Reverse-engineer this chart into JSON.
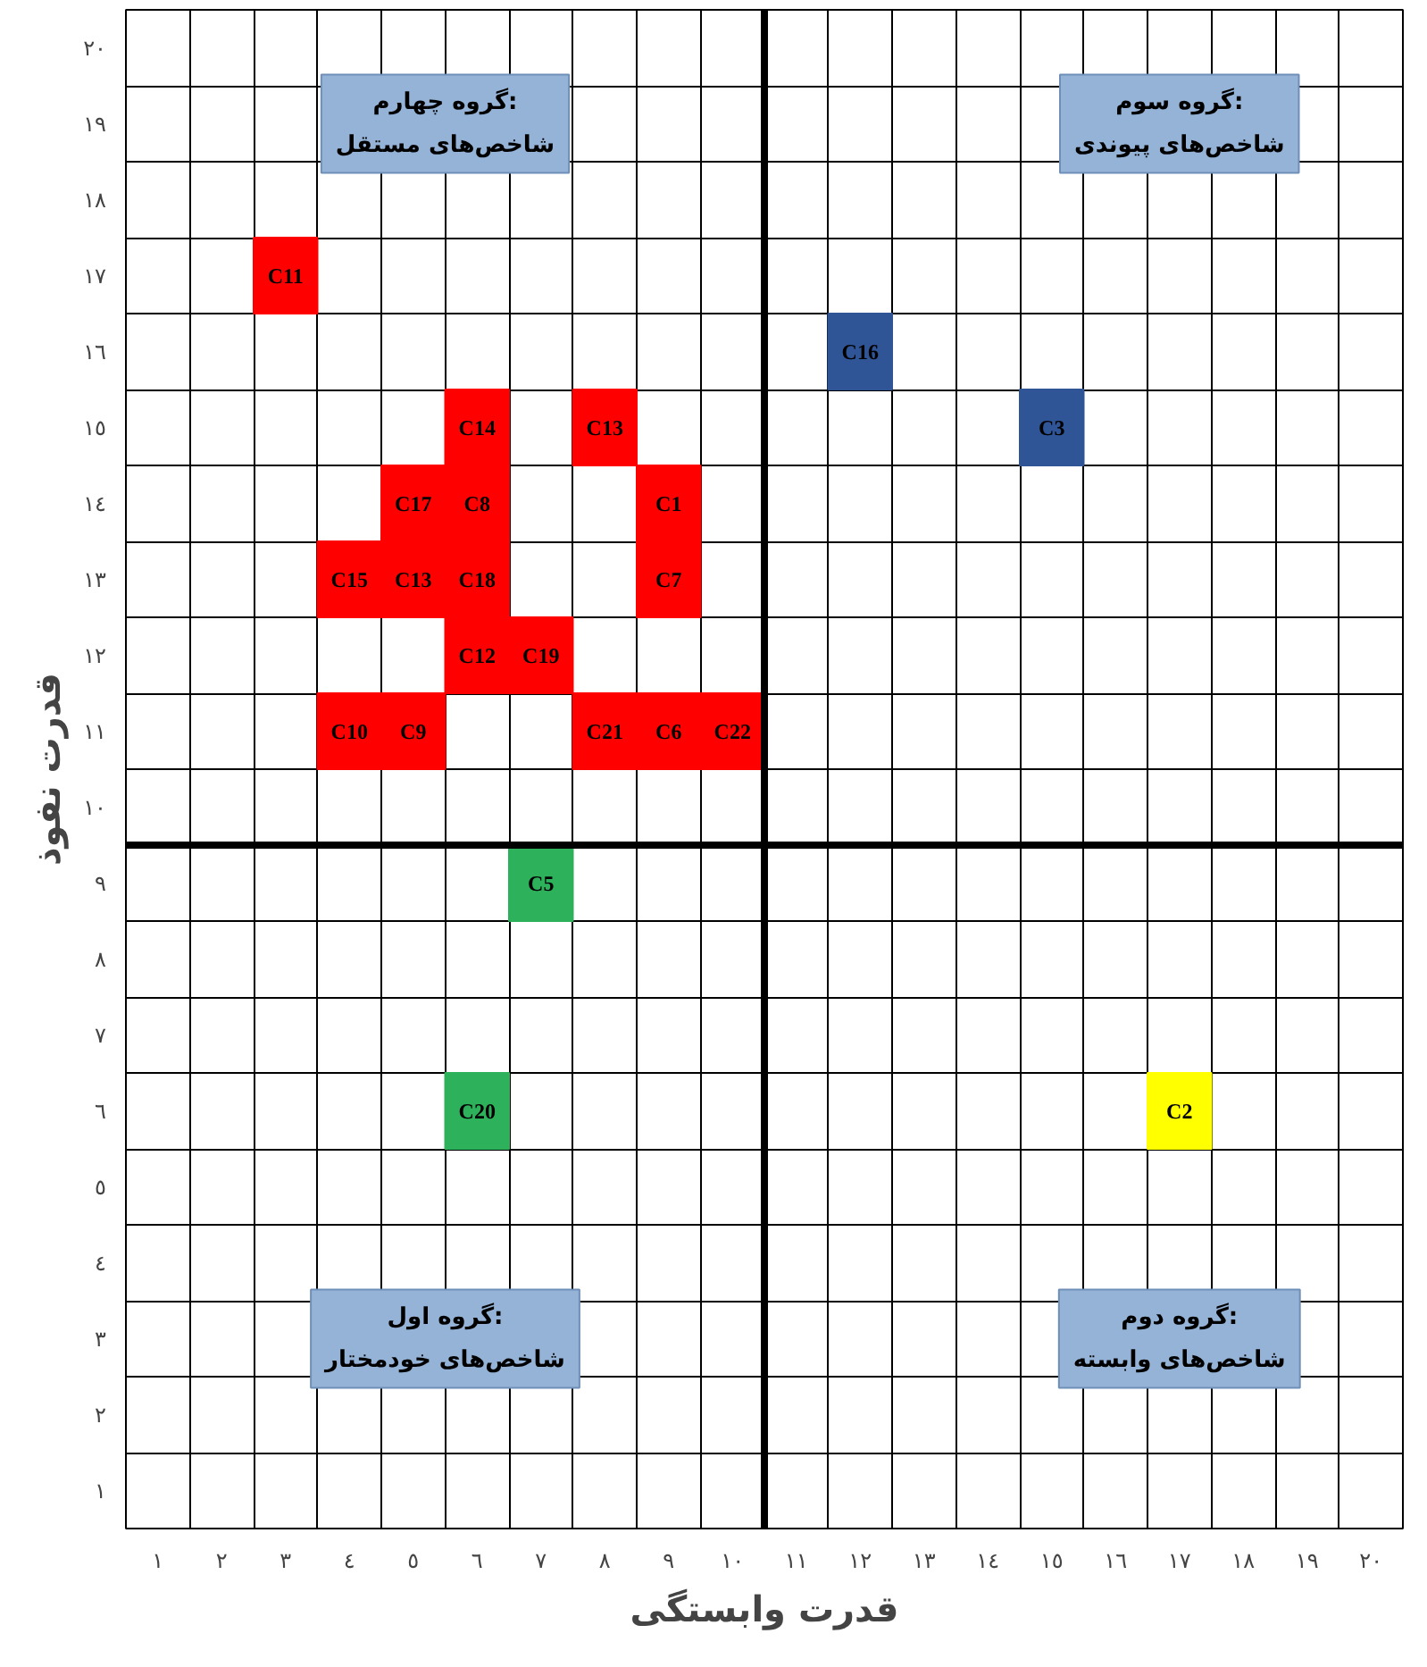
{
  "chart_data": {
    "type": "scatter",
    "xlabel": "قدرت وابستگی",
    "ylabel": "قدرت نفوذ",
    "xlim": [
      0.5,
      20.5
    ],
    "ylim": [
      0.5,
      20.5
    ],
    "xticks": [
      {
        "value": 1,
        "label": "١"
      },
      {
        "value": 2,
        "label": "٢"
      },
      {
        "value": 3,
        "label": "٣"
      },
      {
        "value": 4,
        "label": "٤"
      },
      {
        "value": 5,
        "label": "٥"
      },
      {
        "value": 6,
        "label": "٦"
      },
      {
        "value": 7,
        "label": "٧"
      },
      {
        "value": 8,
        "label": "٨"
      },
      {
        "value": 9,
        "label": "٩"
      },
      {
        "value": 10,
        "label": "١٠"
      },
      {
        "value": 11,
        "label": "١١"
      },
      {
        "value": 12,
        "label": "١٢"
      },
      {
        "value": 13,
        "label": "١٣"
      },
      {
        "value": 14,
        "label": "١٤"
      },
      {
        "value": 15,
        "label": "١٥"
      },
      {
        "value": 16,
        "label": "١٦"
      },
      {
        "value": 17,
        "label": "١٧"
      },
      {
        "value": 18,
        "label": "١٨"
      },
      {
        "value": 19,
        "label": "١٩"
      },
      {
        "value": 20,
        "label": "٢٠"
      }
    ],
    "yticks": [
      {
        "value": 1,
        "label": "١"
      },
      {
        "value": 2,
        "label": "٢"
      },
      {
        "value": 3,
        "label": "٣"
      },
      {
        "value": 4,
        "label": "٤"
      },
      {
        "value": 5,
        "label": "٥"
      },
      {
        "value": 6,
        "label": "٦"
      },
      {
        "value": 7,
        "label": "٧"
      },
      {
        "value": 8,
        "label": "٨"
      },
      {
        "value": 9,
        "label": "٩"
      },
      {
        "value": 10,
        "label": "١٠"
      },
      {
        "value": 11,
        "label": "١١"
      },
      {
        "value": 12,
        "label": "١٢"
      },
      {
        "value": 13,
        "label": "١٣"
      },
      {
        "value": 14,
        "label": "١٤"
      },
      {
        "value": 15,
        "label": "١٥"
      },
      {
        "value": 16,
        "label": "١٦"
      },
      {
        "value": 17,
        "label": "١٧"
      },
      {
        "value": 18,
        "label": "١٨"
      },
      {
        "value": 19,
        "label": "١٩"
      },
      {
        "value": 20,
        "label": "٢٠"
      }
    ],
    "grid": true,
    "marker": "square",
    "series": [
      {
        "color": "#ff0000",
        "x": [
          3,
          6,
          8,
          5,
          6,
          9,
          4,
          5,
          6,
          9,
          6,
          7,
          4,
          5,
          8,
          9,
          10
        ],
        "values": [
          17,
          15,
          15,
          14,
          14,
          14,
          13,
          13,
          13,
          13,
          12,
          12,
          11,
          11,
          11,
          11,
          11
        ],
        "value_labels": [
          "C11",
          "C14",
          "C13",
          "C17",
          "C8",
          "C1",
          "C15",
          "C13",
          "C18",
          "C7",
          "C12",
          "C19",
          "C10",
          "C9",
          "C21",
          "C6",
          "C22"
        ]
      },
      {
        "color": "#2f5597",
        "x": [
          12,
          15
        ],
        "values": [
          16,
          15
        ],
        "value_labels": [
          "C16",
          "C3"
        ]
      },
      {
        "color": "#2db15b",
        "x": [
          7,
          6
        ],
        "values": [
          9,
          6
        ],
        "value_labels": [
          "C5",
          "C20"
        ]
      },
      {
        "color": "#ffff00",
        "x": [
          17
        ],
        "values": [
          6
        ],
        "value_labels": [
          "C2"
        ]
      }
    ],
    "ref_lines": [
      {
        "axis": "x",
        "value": 10.5,
        "color": "#000000"
      },
      {
        "axis": "y",
        "value": 9.5,
        "color": "#000000"
      }
    ],
    "annotations": [
      "گروه اول:\nشاخص‌های خودمختار",
      "گروه دوم:\nشاخص‌های وابسته",
      "گروه سوم:\nشاخص‌های پیوندی",
      "گروه چهارم:\nشاخص‌های مستقل"
    ]
  }
}
